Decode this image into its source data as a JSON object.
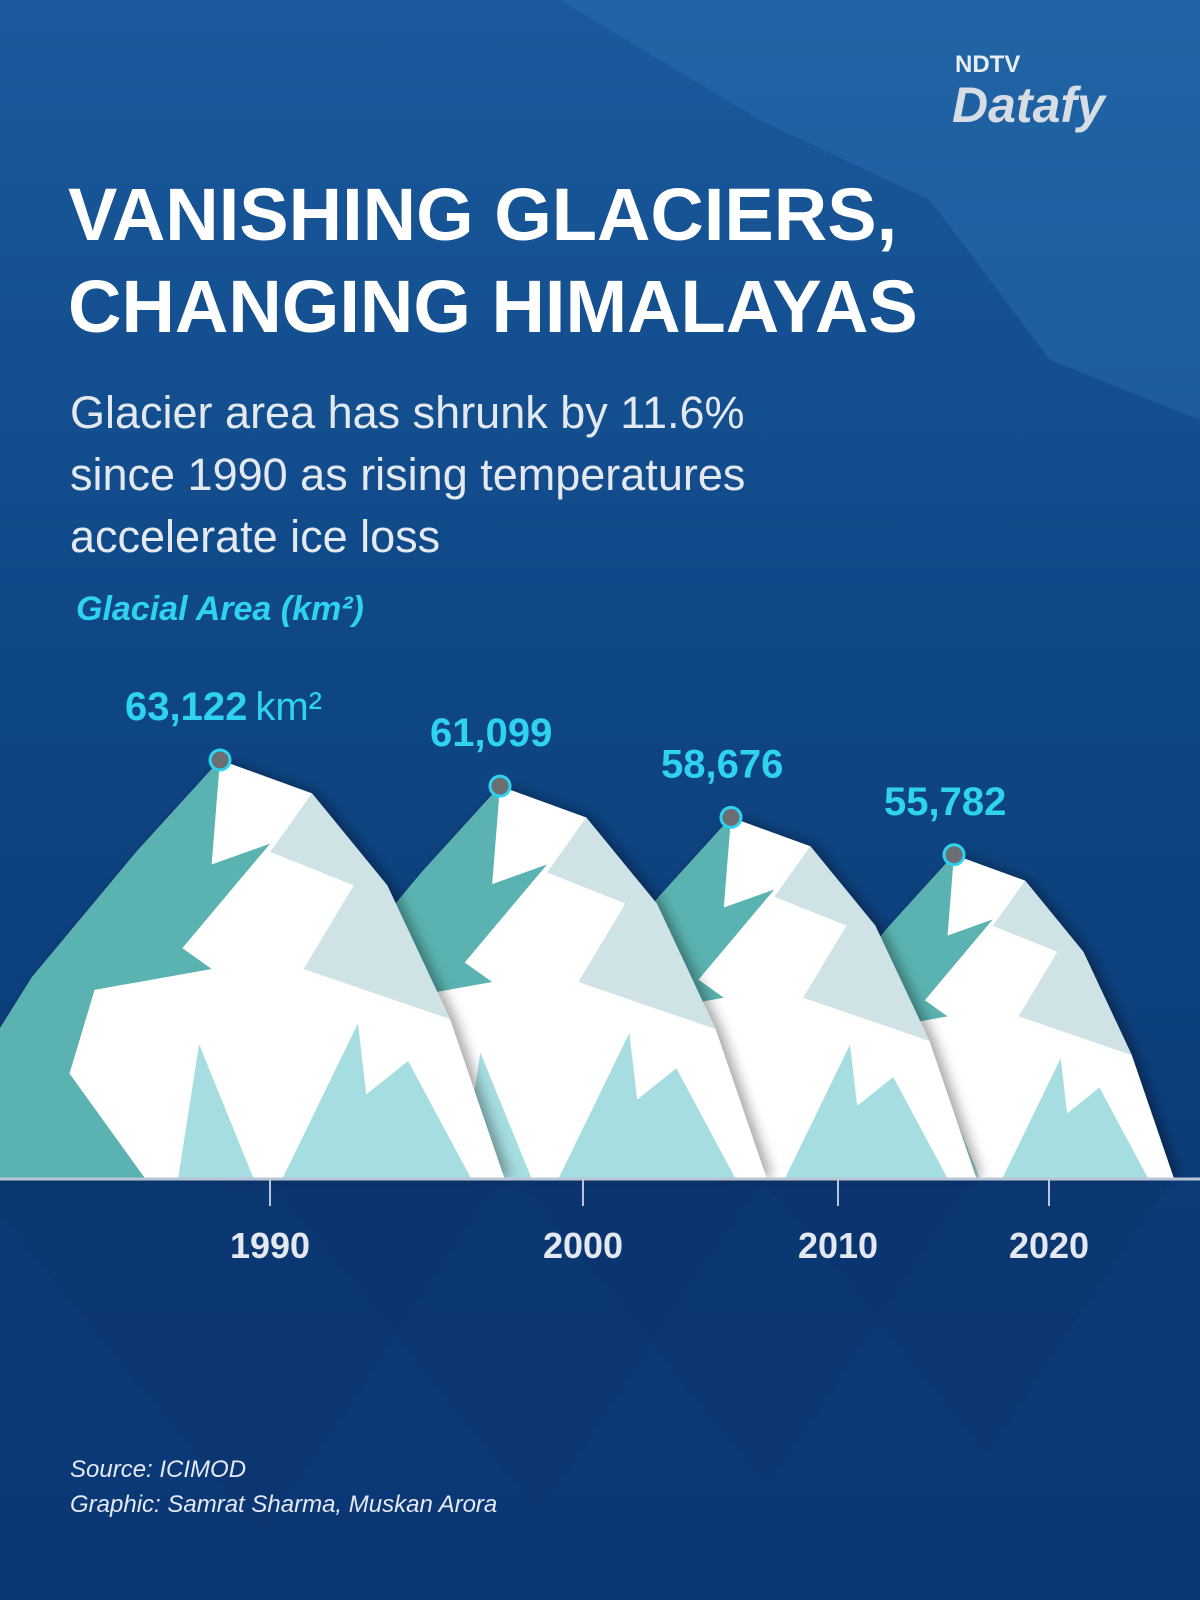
{
  "chart_data": {
    "type": "mountain",
    "brand": [
      "NDTV",
      "Datafy"
    ],
    "title": [
      "VANISHING GLACIERS,",
      "CHANGING HIMALAYAS"
    ],
    "subtitle": [
      "Glacier area has shrunk by 11.6%",
      "since 1990 as rising temperatures",
      "accelerate ice loss"
    ],
    "y_label": "Glacial Area (km²)",
    "categories": [
      "1990",
      "2000",
      "2010",
      "2020"
    ],
    "values": [
      63122,
      61099,
      58676,
      55782
    ],
    "value_labels": [
      "63,122",
      "61,099",
      "58,676",
      "55,782"
    ],
    "unit": "km²",
    "source": "Source: ICIMOD",
    "credit": "Graphic: Samrat Sharma, Muskan Arora"
  }
}
